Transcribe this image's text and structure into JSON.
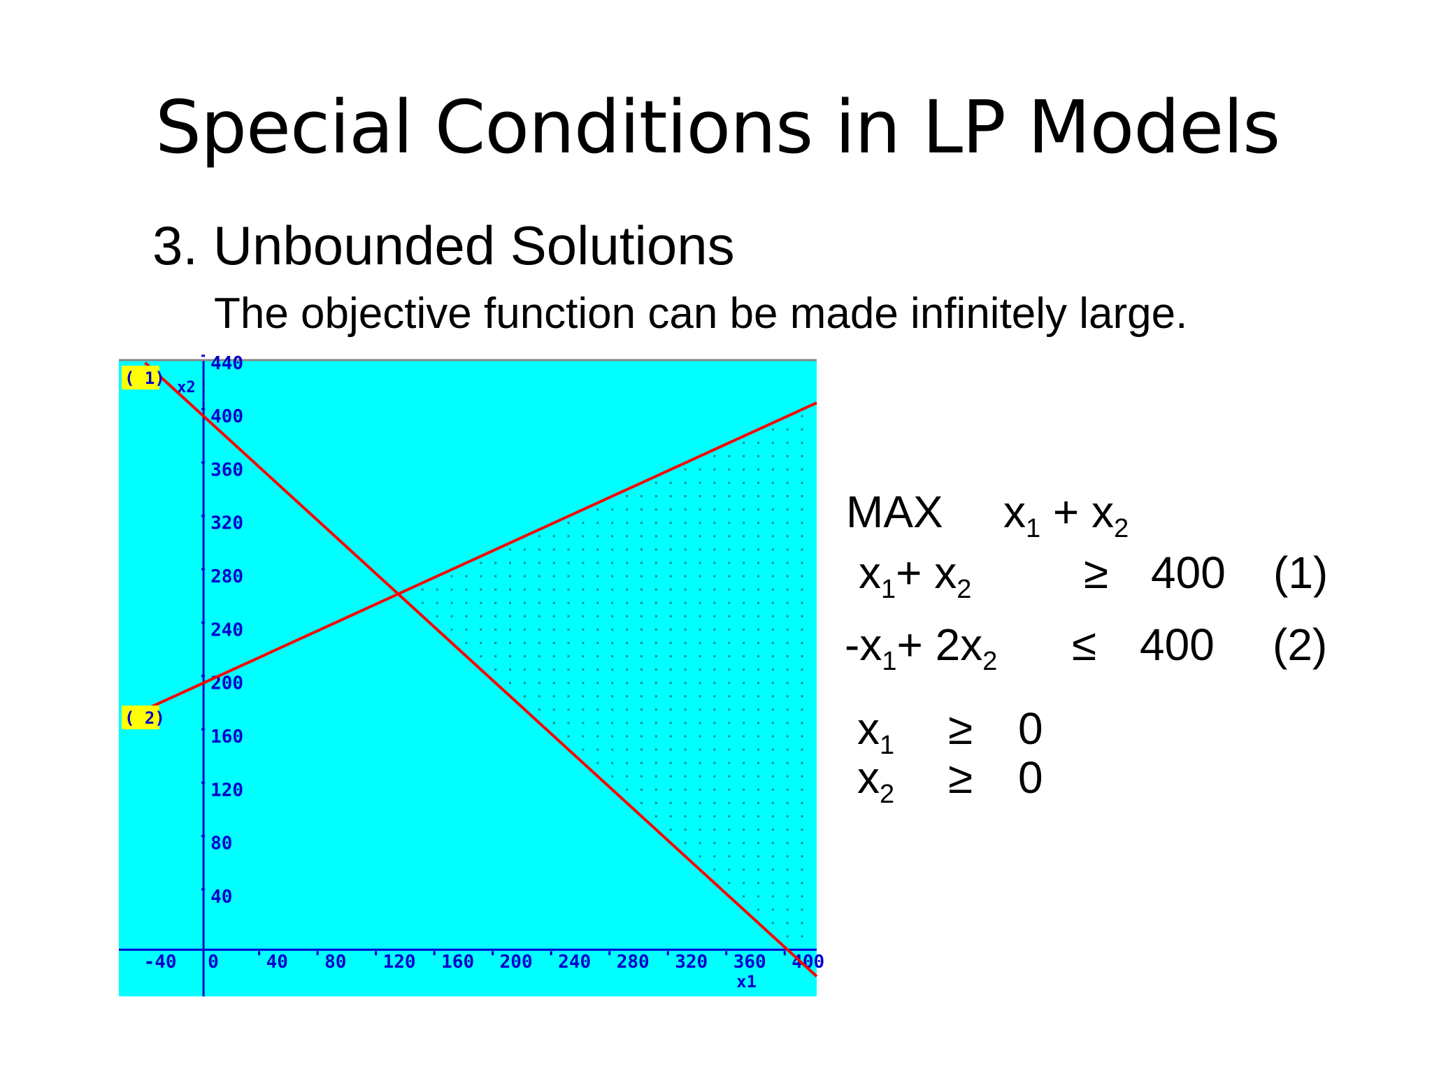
{
  "slide": {
    "title": "Special Conditions in LP Models",
    "subtitle": "3. Unbounded Solutions",
    "description": "The objective function can be made infinitely large."
  },
  "model": {
    "objective": {
      "keyword": "MAX",
      "var1": "x",
      "sub1": "1",
      "op": "+",
      "var2": "x",
      "sub2": "2"
    },
    "constraints": [
      {
        "lhs_pre1": "",
        "var1": "x",
        "sub1": "1",
        "mid": "+ ",
        "coef2": "",
        "var2": "x",
        "sub2": "2",
        "sign": "≥",
        "rhs": "400",
        "label": "(1)"
      },
      {
        "lhs_pre1": "-",
        "var1": "x",
        "sub1": "1",
        "mid": "+ ",
        "coef2": "2",
        "var2": "x",
        "sub2": "2",
        "sign": "≤",
        "rhs": "400",
        "label": "(2)"
      }
    ],
    "nonneg": [
      {
        "var": "x",
        "sub": "1",
        "sign": "≥",
        "rhs": "0"
      },
      {
        "var": "x",
        "sub": "2",
        "sign": "≥",
        "rhs": "0"
      }
    ]
  },
  "chart_data": {
    "type": "line",
    "xlabel": "x1",
    "ylabel": "x2",
    "xlim": [
      -58,
      420
    ],
    "ylim": [
      -35,
      442
    ],
    "x_ticks": [
      -40,
      0,
      40,
      80,
      120,
      160,
      200,
      240,
      280,
      320,
      360,
      400
    ],
    "y_ticks": [
      40,
      80,
      120,
      160,
      200,
      240,
      280,
      320,
      360,
      400,
      440
    ],
    "series": [
      {
        "label": "( 1)",
        "points": [
          [
            -40,
            440
          ],
          [
            420,
            -20
          ]
        ]
      },
      {
        "label": "( 2)",
        "points": [
          [
            -40,
            180
          ],
          [
            420,
            410
          ]
        ]
      }
    ],
    "intersection": [
      133.33,
      266.67
    ],
    "feasible_region": "x1 + x2 >= 400, -x1 + 2x2 <= 400, unbounded to the right",
    "colors": {
      "background": "#00FFFF",
      "axes": "#0000CC",
      "lines": "#FF0000",
      "labels": "#0000CC",
      "label_box": "#FFFF00",
      "dots": "#1C8C8C"
    }
  }
}
